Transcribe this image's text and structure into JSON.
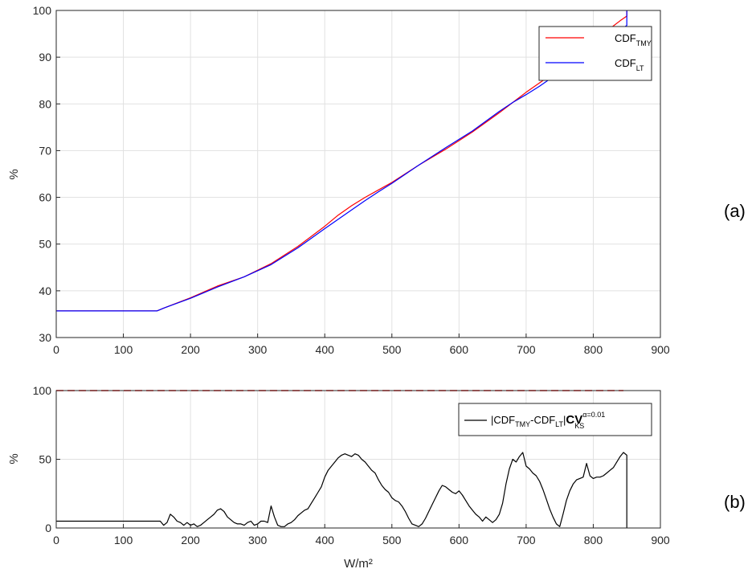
{
  "chart_data": [
    {
      "type": "line",
      "panel_label": "(a)",
      "xlabel": "",
      "ylabel": "%",
      "xlim": [
        0,
        900
      ],
      "ylim": [
        30,
        100
      ],
      "xticks": [
        "0",
        "100",
        "200",
        "300",
        "400",
        "500",
        "600",
        "700",
        "800",
        "900"
      ],
      "yticks": [
        "30",
        "40",
        "50",
        "60",
        "70",
        "80",
        "90",
        "100"
      ],
      "grid": true,
      "legend_position": "top-right",
      "legend": [
        {
          "main": "CDF",
          "sub": "TMY",
          "color": "#ff0000"
        },
        {
          "main": "CDF",
          "sub": "LT",
          "color": "#0000ff"
        }
      ],
      "series": [
        {
          "name": "CDF_TMY",
          "color": "#ff0000",
          "x": [
            0,
            150,
            160,
            200,
            240,
            280,
            320,
            360,
            400,
            420,
            440,
            460,
            480,
            500,
            540,
            580,
            620,
            660,
            680,
            700,
            720,
            740,
            760,
            780,
            800,
            820,
            840,
            850,
            850
          ],
          "y": [
            35.7,
            35.7,
            36.3,
            38.5,
            41.0,
            43.0,
            45.8,
            49.5,
            53.8,
            56.2,
            58.2,
            60.0,
            61.6,
            63.2,
            66.9,
            70.3,
            74.0,
            78.1,
            80.3,
            82.5,
            84.5,
            86.5,
            88.8,
            91.0,
            93.3,
            95.6,
            97.8,
            98.8,
            100
          ]
        },
        {
          "name": "CDF_LT",
          "color": "#0000ff",
          "x": [
            0,
            150,
            160,
            200,
            240,
            280,
            320,
            360,
            400,
            420,
            440,
            460,
            480,
            500,
            540,
            580,
            620,
            660,
            680,
            700,
            720,
            740,
            760,
            780,
            800,
            820,
            840,
            850,
            850
          ],
          "y": [
            35.7,
            35.7,
            36.3,
            38.4,
            40.8,
            43.0,
            45.6,
            49.2,
            53.3,
            55.3,
            57.3,
            59.3,
            61.2,
            63.0,
            66.9,
            70.6,
            74.2,
            78.4,
            80.3,
            82.0,
            83.8,
            85.8,
            87.8,
            89.8,
            91.8,
            93.8,
            95.8,
            96.8,
            100
          ]
        }
      ]
    },
    {
      "type": "line",
      "panel_label": "(b)",
      "xlabel": "W/m²",
      "ylabel": "%",
      "xlim": [
        0,
        900
      ],
      "ylim": [
        0,
        100
      ],
      "xticks": [
        "0",
        "100",
        "200",
        "300",
        "400",
        "500",
        "600",
        "700",
        "800",
        "900"
      ],
      "yticks": [
        "0",
        "50",
        "100"
      ],
      "grid": true,
      "legend_position": "top-right",
      "legend_text": {
        "p1": "|CDF",
        "s1": "TMY",
        "p2": "-CDF",
        "s2": "LT",
        "p3": "|",
        "cv": "CV",
        "sup": "α=0.01",
        "sub": "KS"
      },
      "reference_line": {
        "y": 100,
        "color": "#ff0000",
        "style": "dashed"
      },
      "series": [
        {
          "name": "|CDF_TMY-CDF_LT|CV_KS",
          "color": "#000000",
          "x": [
            0,
            150,
            155,
            160,
            165,
            170,
            175,
            180,
            185,
            190,
            195,
            200,
            205,
            210,
            215,
            220,
            225,
            230,
            235,
            240,
            245,
            250,
            255,
            260,
            265,
            270,
            275,
            280,
            285,
            290,
            295,
            300,
            305,
            310,
            315,
            320,
            325,
            330,
            335,
            340,
            345,
            350,
            355,
            360,
            365,
            370,
            375,
            380,
            385,
            390,
            395,
            400,
            405,
            410,
            415,
            420,
            425,
            430,
            435,
            440,
            445,
            450,
            455,
            460,
            465,
            470,
            475,
            480,
            485,
            490,
            495,
            500,
            505,
            510,
            515,
            520,
            525,
            530,
            535,
            540,
            545,
            550,
            555,
            560,
            565,
            570,
            575,
            580,
            585,
            590,
            595,
            600,
            605,
            610,
            615,
            620,
            625,
            630,
            635,
            640,
            645,
            650,
            655,
            660,
            665,
            670,
            675,
            680,
            685,
            690,
            695,
            700,
            705,
            710,
            715,
            720,
            725,
            730,
            735,
            740,
            745,
            750,
            755,
            760,
            765,
            770,
            775,
            780,
            785,
            790,
            795,
            800,
            805,
            810,
            815,
            820,
            825,
            830,
            835,
            840,
            845,
            850,
            850
          ],
          "y": [
            5,
            5,
            5,
            2,
            4,
            10,
            8,
            5,
            4,
            2,
            4,
            2,
            3,
            1,
            2,
            4,
            6,
            8,
            10,
            13,
            14,
            12,
            8,
            6,
            4,
            3,
            3,
            2,
            4,
            5,
            2,
            3,
            5,
            5,
            4,
            16,
            8,
            2,
            1,
            1,
            3,
            4,
            6,
            9,
            11,
            13,
            14,
            18,
            22,
            26,
            30,
            37,
            42,
            45,
            48,
            51,
            53,
            54,
            53,
            52,
            54,
            53,
            50,
            48,
            45,
            42,
            40,
            35,
            31,
            28,
            26,
            22,
            20,
            19,
            16,
            12,
            7,
            3,
            2,
            1,
            3,
            7,
            12,
            17,
            22,
            27,
            31,
            30,
            28,
            26,
            25,
            27,
            24,
            20,
            16,
            13,
            10,
            8,
            5,
            8,
            6,
            4,
            6,
            10,
            18,
            32,
            43,
            50,
            48,
            52,
            55,
            45,
            43,
            40,
            38,
            34,
            28,
            21,
            14,
            8,
            3,
            1,
            10,
            20,
            27,
            32,
            35,
            36,
            37,
            47,
            38,
            36,
            37,
            37,
            38,
            40,
            42,
            44,
            48,
            52,
            55,
            53,
            0
          ]
        }
      ]
    }
  ]
}
